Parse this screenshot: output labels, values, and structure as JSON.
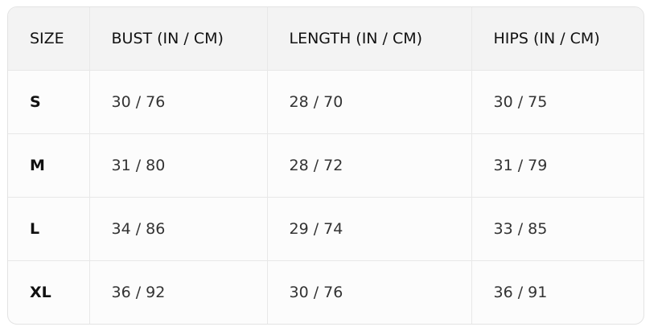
{
  "headers": [
    "SIZE",
    "BUST (IN / CM)",
    "LENGTH (IN / CM)",
    "HIPS (IN / CM)"
  ],
  "rows": [
    [
      "S",
      "30 / 76",
      "28 / 70",
      "30 / 75"
    ],
    [
      "M",
      "31 / 80",
      "28 / 72",
      "31 / 79"
    ],
    [
      "L",
      "34 / 86",
      "29 / 74",
      "33 / 85"
    ],
    [
      "XL",
      "36 / 92",
      "30 / 76",
      "36 / 91"
    ]
  ]
}
